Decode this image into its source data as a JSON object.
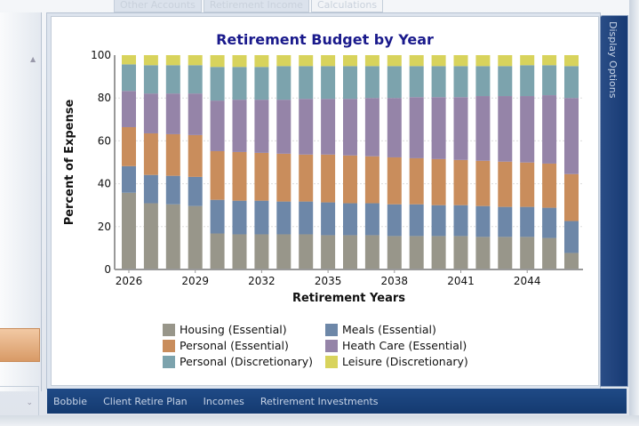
{
  "top_tabs": [
    {
      "label": "Other Accounts"
    },
    {
      "label": "Retirement Income"
    },
    {
      "label": "Calculations",
      "active": true
    }
  ],
  "display_options_label": "Display Options",
  "bottom_tabs": [
    {
      "label": "Bobbie"
    },
    {
      "label": "Client Retire Plan"
    },
    {
      "label": "Incomes"
    },
    {
      "label": "Retirement Investments"
    }
  ],
  "chart_data": {
    "type": "bar",
    "stacked": true,
    "title": "Retirement Budget by Year",
    "xlabel": "Retirement Years",
    "ylabel": "Percent of Expense",
    "ylim": [
      0,
      100
    ],
    "yticks": [
      0,
      20,
      40,
      60,
      80,
      100
    ],
    "xtick_labels": [
      "2026",
      "2029",
      "2032",
      "2035",
      "2038",
      "2041",
      "2044"
    ],
    "grid": "horizontal dotted",
    "legend_placement": "bottom",
    "categories": [
      "2026",
      "2027",
      "2028",
      "2029",
      "2030",
      "2031",
      "2032",
      "2033",
      "2034",
      "2035",
      "2036",
      "2037",
      "2038",
      "2039",
      "2040",
      "2041",
      "2042",
      "2043",
      "2044",
      "2045",
      "2046"
    ],
    "series": [
      {
        "name": "Housing (Essential)",
        "color": "#98968a",
        "values": [
          35.8,
          30.9,
          30.4,
          29.6,
          16.8,
          16.4,
          16.4,
          16.4,
          16.4,
          16.0,
          16.0,
          16.0,
          15.6,
          15.6,
          15.6,
          15.6,
          15.2,
          15.2,
          15.2,
          14.7,
          7.7
        ]
      },
      {
        "name": "Meals (Essential)",
        "color": "#6d87a8",
        "values": [
          12.4,
          13.2,
          13.3,
          13.6,
          15.7,
          15.7,
          15.7,
          15.3,
          15.3,
          15.3,
          14.9,
          14.9,
          14.8,
          14.8,
          14.4,
          14.4,
          14.4,
          14.0,
          14.0,
          14.1,
          14.9
        ]
      },
      {
        "name": "Personal (Essential)",
        "color": "#c98d5c",
        "values": [
          18.2,
          19.4,
          19.4,
          19.5,
          22.7,
          22.7,
          22.3,
          22.3,
          21.9,
          22.3,
          22.3,
          21.9,
          21.9,
          21.5,
          21.5,
          21.1,
          21.1,
          21.1,
          20.7,
          20.6,
          21.9
        ]
      },
      {
        "name": "Heath Care (Essential)",
        "color": "#9584a8",
        "values": [
          16.9,
          18.6,
          19.0,
          19.4,
          23.6,
          24.4,
          24.8,
          25.2,
          26.0,
          26.0,
          26.4,
          27.2,
          27.7,
          28.5,
          28.9,
          29.3,
          30.2,
          30.6,
          31.0,
          31.9,
          35.5
        ]
      },
      {
        "name": "Personal (Discretionary)",
        "color": "#7ca3ad",
        "values": [
          12.4,
          13.2,
          13.2,
          13.2,
          15.7,
          15.3,
          15.3,
          15.7,
          15.3,
          15.3,
          15.3,
          14.9,
          14.9,
          14.5,
          14.5,
          14.5,
          14.0,
          14.0,
          14.4,
          14.0,
          14.9
        ]
      },
      {
        "name": "Leisure (Discretionary)",
        "color": "#d8d35c",
        "values": [
          4.3,
          4.7,
          4.7,
          4.7,
          5.5,
          5.5,
          5.5,
          5.1,
          5.1,
          5.1,
          5.1,
          5.1,
          5.1,
          5.1,
          5.1,
          5.1,
          5.1,
          5.1,
          4.7,
          4.7,
          5.1
        ]
      }
    ],
    "legend_order": [
      0,
      1,
      2,
      3,
      4,
      5
    ]
  }
}
